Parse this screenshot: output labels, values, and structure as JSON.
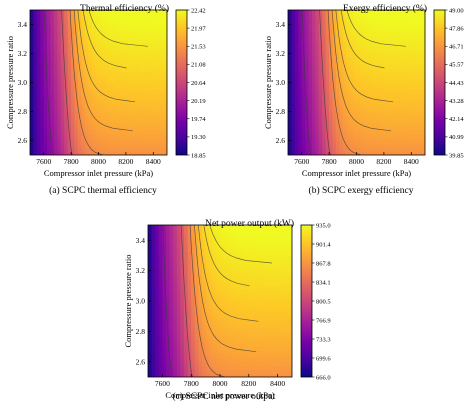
{
  "palette": [
    "#0d0887",
    "#46039f",
    "#7201a8",
    "#9c179e",
    "#bd3786",
    "#d8576b",
    "#ed7953",
    "#fb9f3a",
    "#fdca26",
    "#f0f921"
  ],
  "chart_data": [
    {
      "type": "heatmap",
      "title": "Thermal efficiency (%)",
      "caption": "(a) SCPC thermal efficiency",
      "xlabel": "Compressor inlet pressure (kPa)",
      "ylabel": "Compressure pressure ratio",
      "xlim": [
        7500,
        8500
      ],
      "ylim": [
        2.5,
        3.5
      ],
      "xticks": [
        "7600",
        "7800",
        "8000",
        "8200",
        "8400"
      ],
      "yticks": [
        "2.6",
        "2.8",
        "3.0",
        "3.2",
        "3.4"
      ],
      "colorbar_min": 18.85,
      "colorbar_max": 22.42,
      "colorbar_ticks": [
        "22.42",
        "21.97",
        "21.53",
        "21.08",
        "20.64",
        "20.19",
        "19.74",
        "19.30",
        "18.85"
      ]
    },
    {
      "type": "heatmap",
      "title": "Exergy efficiency (%)",
      "caption": "(b) SCPC exergy efficiency",
      "xlabel": "Compressor inlet pressure (kPa)",
      "ylabel": "Compressure pressure ratio",
      "xlim": [
        7500,
        8500
      ],
      "ylim": [
        2.5,
        3.5
      ],
      "xticks": [
        "7600",
        "7800",
        "8000",
        "8200",
        "8400"
      ],
      "yticks": [
        "2.6",
        "2.8",
        "3.0",
        "3.2",
        "3.4"
      ],
      "colorbar_min": 39.85,
      "colorbar_max": 49.0,
      "colorbar_ticks": [
        "49.00",
        "47.86",
        "46.71",
        "45.57",
        "44.43",
        "43.28",
        "42.14",
        "40.99",
        "39.85"
      ]
    },
    {
      "type": "heatmap",
      "title": "Net power output (kW)",
      "caption": "(c) SCPC net power output",
      "xlabel": "Compressor inlet pressure (kPa)",
      "ylabel": "Compressure pressure ratio",
      "xlim": [
        7500,
        8500
      ],
      "ylim": [
        2.5,
        3.5
      ],
      "xticks": [
        "7600",
        "7800",
        "8000",
        "8200",
        "8400"
      ],
      "yticks": [
        "2.6",
        "2.8",
        "3.0",
        "3.2",
        "3.4"
      ],
      "colorbar_min": 666.0,
      "colorbar_max": 935.0,
      "colorbar_ticks": [
        "935.0",
        "901.4",
        "867.8",
        "834.1",
        "800.5",
        "766.9",
        "733.3",
        "699.6",
        "666.0"
      ]
    }
  ]
}
